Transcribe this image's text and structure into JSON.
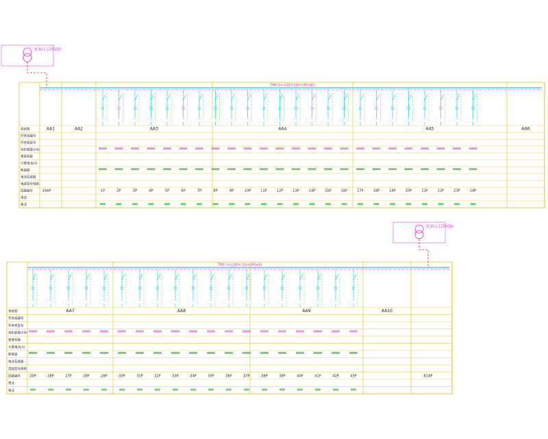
{
  "top": {
    "transformer": "SCB11-1250/10",
    "bus_label": "TMY-3×(100×10)+(80×8)",
    "panels": [
      "AA1",
      "AA2",
      "AA3",
      "AA4",
      "AA5",
      "AA6"
    ],
    "row_labels": [
      "系统图",
      "开关柜编号",
      "开关柜型号",
      "装机容量(kW)",
      "需要系数",
      "计算电流(A)",
      "断路器",
      "电流互感器",
      "电缆型号规格",
      "回路编号",
      "用途",
      "备注"
    ],
    "incoming_circuit": "19AP",
    "circuits": [
      "1P",
      "2P",
      "3P",
      "4P",
      "5P",
      "6P",
      "7P",
      "8P",
      "9P",
      "10P",
      "11P",
      "12P",
      "13P",
      "14P",
      "15P",
      "16P",
      "17P",
      "18P",
      "19P",
      "20P",
      "21P",
      "22P",
      "23P",
      "24P"
    ]
  },
  "bottom": {
    "transformer": "SCB11-1250/10",
    "bus_label": "TMY-3×(100×10)+(80×8)",
    "panels": [
      "AA7",
      "AA8",
      "AA9",
      "AA10"
    ],
    "row_labels": [
      "系统图",
      "开关柜编号",
      "开关柜型号",
      "装机容量(kW)",
      "需要系数",
      "计算电流(A)",
      "断路器",
      "电流互感器",
      "电缆型号规格",
      "回路编号",
      "用途",
      "备注"
    ],
    "incoming_circuit": "82AP",
    "circuits": [
      "25P",
      "26P",
      "27P",
      "28P",
      "29P",
      "30P",
      "31P",
      "32P",
      "33P",
      "34P",
      "35P",
      "36P",
      "37P",
      "38P",
      "39P",
      "40P",
      "41P",
      "42P",
      "43P"
    ]
  }
}
